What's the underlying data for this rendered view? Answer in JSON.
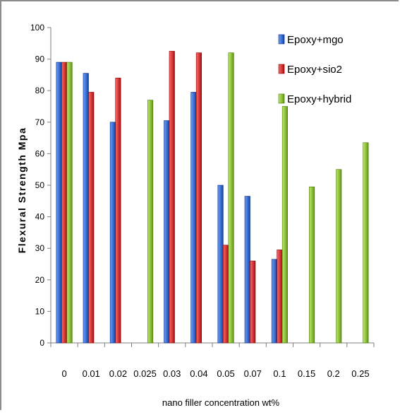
{
  "chart_data": {
    "type": "bar",
    "title": "",
    "xlabel": "nano filler concentration wt%",
    "ylabel": "Flexural  Strength  Mpa",
    "ylim": [
      0,
      100
    ],
    "ytick_step": 10,
    "grid": false,
    "legend_position": "top-right",
    "categories": [
      "0",
      "0.01",
      "0.02",
      "0.025",
      "0.03",
      "0.04",
      "0.05",
      "0.07",
      "0.1",
      "0.15",
      "0.2",
      "0.25"
    ],
    "series": [
      {
        "name": "Epoxy+mgo",
        "color": "#3d6fcf",
        "values": [
          89,
          85.5,
          70,
          null,
          70.5,
          79.5,
          50,
          46.5,
          26.5,
          null,
          null,
          null
        ]
      },
      {
        "name": "Epoxy+sio2",
        "color": "#d23b3b",
        "values": [
          89,
          79.5,
          84,
          null,
          92.5,
          92,
          31,
          26,
          29.5,
          null,
          null,
          null
        ]
      },
      {
        "name": "Epoxy+hybrid",
        "color": "#8fbf3f",
        "values": [
          89,
          null,
          null,
          77,
          null,
          null,
          92,
          null,
          75,
          49.5,
          55,
          63.5
        ]
      }
    ]
  }
}
